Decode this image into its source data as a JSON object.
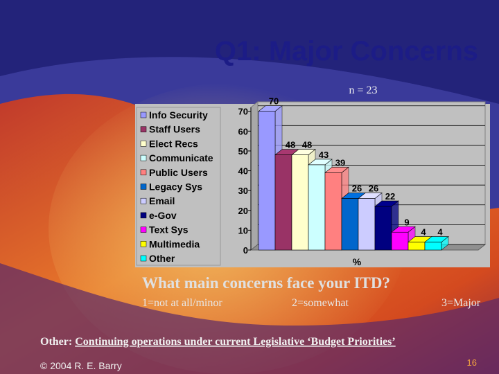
{
  "chart_data": {
    "type": "bar",
    "title": "Q1: Major Concerns",
    "subtitle": "n = 23",
    "x_label": "%",
    "categories": [
      "Info Security",
      "Staff Users",
      "Elect Recs",
      "Communicate",
      "Public Users",
      "Legacy Sys",
      "Email",
      "e-Gov",
      "Text Sys",
      "Multimedia",
      "Other"
    ],
    "values": [
      70,
      48,
      48,
      43,
      39,
      26,
      26,
      22,
      9,
      4,
      4
    ],
    "colors": [
      "#9999ff",
      "#993366",
      "#ffffcc",
      "#ccffff",
      "#ff8080",
      "#0066cc",
      "#ccccff",
      "#000080",
      "#ff00ff",
      "#ffff00",
      "#00ffff"
    ],
    "ylim": [
      0,
      72
    ],
    "yticks": [
      0,
      10,
      20,
      30,
      40,
      50,
      60,
      70
    ],
    "grid": true,
    "legend": "left"
  },
  "slide": {
    "question": "What main concerns face your ITD?",
    "scale": [
      "1=not at all/minor",
      "2=somewhat",
      "3=Major"
    ],
    "other_prefix": "Other:",
    "other_text": "Continuing operations under current Legislative ‘Budget Priorities’",
    "footer": "© 2004 R. E. Barry",
    "page": "16"
  }
}
